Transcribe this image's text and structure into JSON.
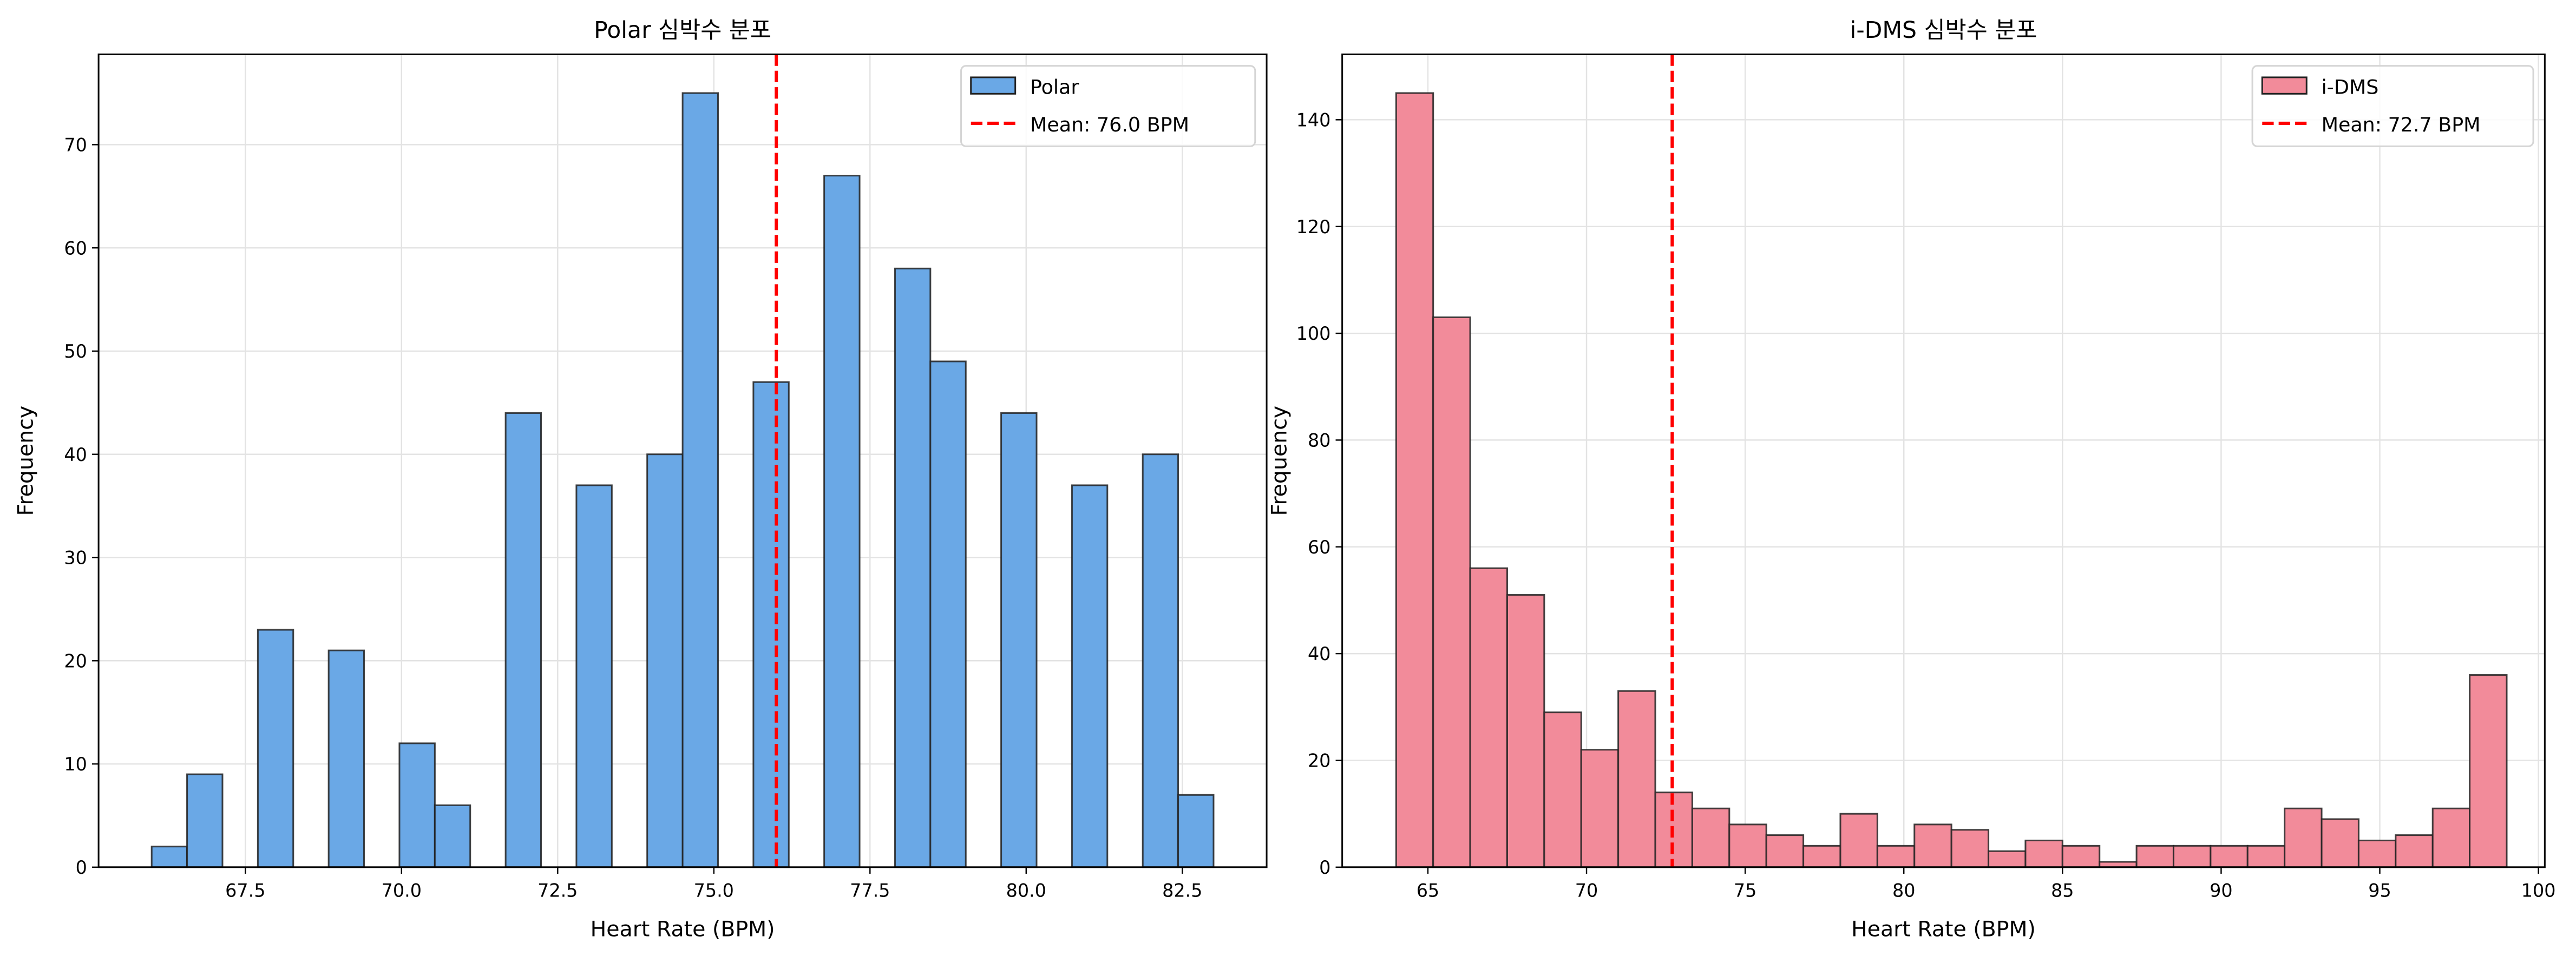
{
  "chart_data": [
    {
      "type": "bar",
      "title": "Polar 심박수 분포",
      "xlabel": "Heart Rate (BPM)",
      "ylabel": "Frequency",
      "bin_range": [
        66,
        83
      ],
      "bins": 30,
      "counts": [
        2,
        9,
        0,
        23,
        0,
        21,
        0,
        12,
        6,
        0,
        44,
        0,
        37,
        0,
        40,
        75,
        0,
        47,
        0,
        67,
        0,
        58,
        49,
        0,
        44,
        0,
        37,
        0,
        40,
        7
      ],
      "xlim": [
        65.15,
        83.85
      ],
      "ylim": [
        0,
        78.75
      ],
      "xticks": [
        67.5,
        70.0,
        72.5,
        75.0,
        77.5,
        80.0,
        82.5
      ],
      "xtick_labels": [
        "67.5",
        "70.0",
        "72.5",
        "75.0",
        "77.5",
        "80.0",
        "82.5"
      ],
      "yticks": [
        0,
        10,
        20,
        30,
        40,
        50,
        60,
        70
      ],
      "ytick_labels": [
        "0",
        "10",
        "20",
        "30",
        "40",
        "50",
        "60",
        "70"
      ],
      "mean": 76.0,
      "legend": {
        "series": "Polar",
        "mean": "Mean:  76.0 BPM",
        "placement": "upper-right"
      },
      "bar_color": "#6aa8e6",
      "mean_color": "#ff0000",
      "grid": true
    },
    {
      "type": "bar",
      "title": "i-DMS 심박수 분포",
      "xlabel": "Heart Rate (BPM)",
      "ylabel": "Frequency",
      "bin_range": [
        64,
        99
      ],
      "bins": 30,
      "counts": [
        145,
        103,
        56,
        51,
        29,
        22,
        33,
        14,
        11,
        8,
        6,
        4,
        10,
        4,
        8,
        7,
        3,
        5,
        4,
        1,
        4,
        4,
        4,
        4,
        11,
        9,
        5,
        6,
        11,
        36
      ],
      "xlim": [
        62.3,
        100.2
      ],
      "ylim": [
        0,
        152.25
      ],
      "xticks": [
        65,
        70,
        75,
        80,
        85,
        90,
        95,
        100
      ],
      "xtick_labels": [
        "65",
        "70",
        "75",
        "80",
        "85",
        "90",
        "95",
        "100"
      ],
      "yticks": [
        0,
        20,
        40,
        60,
        80,
        100,
        120,
        140
      ],
      "ytick_labels": [
        "0",
        "20",
        "40",
        "60",
        "80",
        "100",
        "120",
        "140"
      ],
      "mean": 72.7,
      "legend": {
        "series": "i-DMS",
        "mean": "Mean:  72.7 BPM",
        "placement": "upper-right"
      },
      "bar_color": "#f28b9a",
      "mean_color": "#ff0000",
      "grid": true
    }
  ]
}
